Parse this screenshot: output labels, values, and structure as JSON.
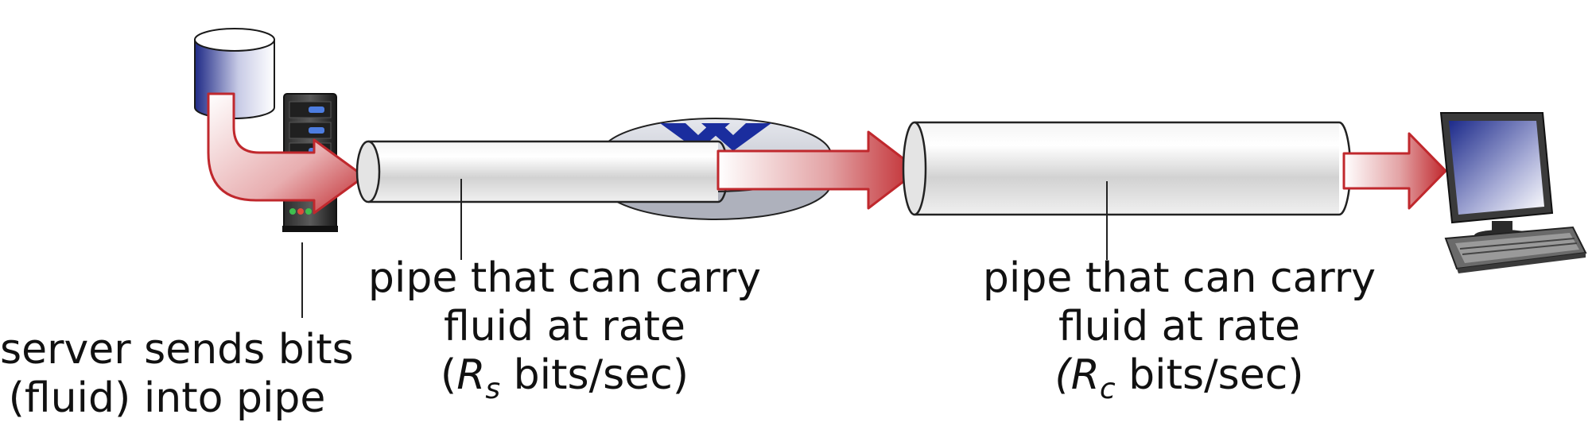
{
  "server_label": {
    "line1": "server sends bits",
    "line2": "(fluid) into pipe"
  },
  "pipe_small_label": {
    "line1": "pipe that can carry",
    "line2": "fluid at rate",
    "open": "(",
    "symbol": "R",
    "sub": "s",
    "units": " bits/sec)"
  },
  "pipe_large_label": {
    "line1": "pipe that can carry",
    "line2": "fluid at rate",
    "open": "(",
    "symbol": "R",
    "sub": "c",
    "units": " bits/sec)"
  },
  "icons": [
    "database-icon",
    "server-icon",
    "router-icon",
    "pipe",
    "flow-arrow",
    "desktop-computer-icon"
  ],
  "colors": {
    "flow_arrow": "#c0282d",
    "pipe_stroke": "#222222",
    "router_arrows": "#1a2d9e",
    "database": "#3a3a9a"
  }
}
